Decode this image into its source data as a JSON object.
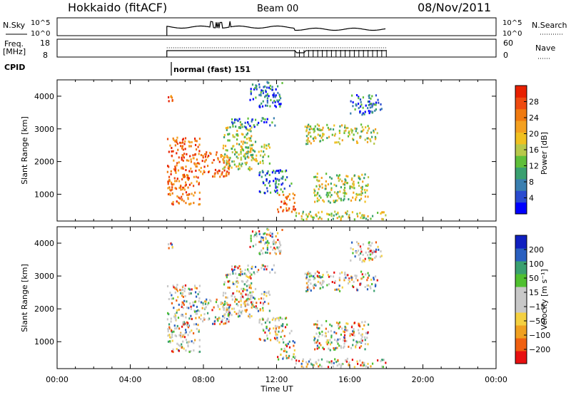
{
  "header": {
    "station": "Hokkaido (fitACF)",
    "beam": "Beam 00",
    "date": "08/Nov/2011"
  },
  "top_panels": {
    "nsky": {
      "label": "N.Sky",
      "left_ticks": [
        "10^5",
        "10^0"
      ],
      "right_ticks": [
        "10^5",
        "10^0"
      ],
      "right_label": "N.Search"
    },
    "freq": {
      "label_line1": "Freq.",
      "label_line2": "[MHz]",
      "left_ticks": [
        "18",
        "8"
      ],
      "right_ticks": [
        "60",
        "0"
      ],
      "right_label": "Nave"
    },
    "cpid": {
      "label": "CPID",
      "mode_text": "normal (fast) 151"
    }
  },
  "chart_data": [
    {
      "type": "heatmap",
      "name": "power-panel",
      "ylabel": "Slant Range [km]",
      "yticks": [
        "1000",
        "2000",
        "3000",
        "4000"
      ],
      "ylim": [
        180,
        4500
      ],
      "xlim": [
        0,
        24
      ],
      "colorbar": {
        "label": "Power [dB]",
        "ticks": [
          "28",
          "24",
          "20",
          "16",
          "12",
          "8",
          "4"
        ],
        "range": [
          0,
          32
        ],
        "colors": [
          "#0000ff",
          "#2a4bd0",
          "#3a7fb0",
          "#3aa070",
          "#5fbf3a",
          "#b8c84a",
          "#f0c020",
          "#f4a020",
          "#f07a10",
          "#ee4a10",
          "#e82000"
        ]
      },
      "features": [
        {
          "t0": 6.0,
          "t1": 6.4,
          "r0": 3800,
          "r1": 4100,
          "level": "high"
        },
        {
          "t0": 6.0,
          "t1": 7.8,
          "r0": 650,
          "r1": 2700,
          "level": "high"
        },
        {
          "t0": 7.8,
          "t1": 9.4,
          "r0": 1500,
          "r1": 2300,
          "level": "high"
        },
        {
          "t0": 9.0,
          "t1": 10.6,
          "r0": 1700,
          "r1": 3100,
          "level": "mid"
        },
        {
          "t0": 10.0,
          "t1": 11.6,
          "r0": 1900,
          "r1": 2600,
          "level": "mid"
        },
        {
          "t0": 11.0,
          "t1": 12.8,
          "r0": 1000,
          "r1": 1700,
          "level": "low"
        },
        {
          "t0": 12.0,
          "t1": 13.0,
          "r0": 400,
          "r1": 1000,
          "level": "high"
        },
        {
          "t0": 9.5,
          "t1": 12.0,
          "r0": 3000,
          "r1": 3300,
          "level": "low"
        },
        {
          "t0": 10.5,
          "t1": 12.3,
          "r0": 3600,
          "r1": 4400,
          "level": "low"
        },
        {
          "t0": 13.5,
          "t1": 17.5,
          "r0": 2500,
          "r1": 3100,
          "level": "mid"
        },
        {
          "t0": 14.0,
          "t1": 17.0,
          "r0": 700,
          "r1": 1600,
          "level": "mid"
        },
        {
          "t0": 16.0,
          "t1": 17.8,
          "r0": 3400,
          "r1": 4000,
          "level": "low"
        },
        {
          "t0": 13.0,
          "t1": 18.0,
          "r0": 180,
          "r1": 450,
          "level": "mid"
        }
      ]
    },
    {
      "type": "heatmap",
      "name": "velocity-panel",
      "ylabel": "Slant Range [km]",
      "yticks": [
        "1000",
        "2000",
        "3000",
        "4000"
      ],
      "ylim": [
        180,
        4500
      ],
      "xlim": [
        0,
        24
      ],
      "xticks": [
        "00:00",
        "04:00",
        "08:00",
        "12:00",
        "16:00",
        "20:00",
        "00:00"
      ],
      "xlabel": "Time UT",
      "colorbar": {
        "label": "Velocity [m s⁻¹]",
        "ticks": [
          "200",
          "100",
          "50",
          "15",
          "−15",
          "−50",
          "−100",
          "−200"
        ],
        "range": [
          -250,
          250
        ],
        "colors": [
          "#e81010",
          "#f06010",
          "#f0a020",
          "#f4d040",
          "#c8c8c8",
          "#c8c8c8",
          "#50c030",
          "#3aa070",
          "#2a60c0",
          "#1020c0"
        ]
      }
    }
  ]
}
